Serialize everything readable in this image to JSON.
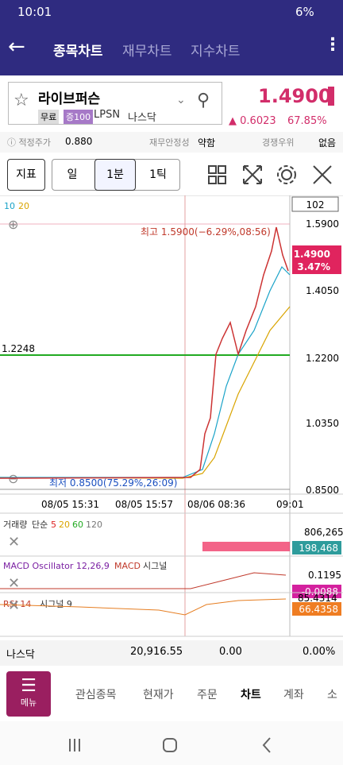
{
  "status_bar": {
    "time": "10:01",
    "battery": "6%"
  },
  "tabs": [
    "종목차트",
    "재무차트",
    "지수차트"
  ],
  "stock": {
    "name": "라이브퍼슨",
    "badges": [
      "무료",
      "증100"
    ],
    "ticker": "LPSN",
    "market": "나스닥",
    "price": "1.4900",
    "change": "0.6023",
    "change_pct": "67.85%"
  },
  "info": [
    {
      "label": "적정주가",
      "value": "0.880"
    },
    {
      "label": "재무안정성",
      "value": "약함"
    },
    {
      "label": "경쟁우위",
      "value": "없음"
    }
  ],
  "toolbar": [
    "지표",
    "일",
    "1분",
    "1틱"
  ],
  "chart": {
    "ma": [
      "10",
      "20"
    ],
    "count": "102",
    "price_ticks": [
      "1.5900",
      "1.4050",
      "1.2200",
      "1.0350",
      "0.8500"
    ],
    "current": {
      "price": "1.4900",
      "pct": "3.47%"
    },
    "high": "최고 1.5900(−6.29%,08:56)",
    "low": "최저 0.8500(75.29%,26:09)",
    "line_label": "1.2248",
    "time_ticks": [
      "08/05 15:31",
      "08/05 15:57",
      "08/06 08:36",
      "09:01"
    ]
  },
  "volume": {
    "title": "거래량",
    "kind": "단순",
    "ma": [
      "5",
      "20",
      "60",
      "120"
    ],
    "max": "806,265",
    "current": "198,468"
  },
  "macd": {
    "title": "MACD Oscillator 12,26,9",
    "macd": "MACD",
    "signal": "시그널",
    "max": "0.1195",
    "current": "-0.0088"
  },
  "rsi": {
    "title": "RSI 14",
    "signal": "시그널 9",
    "top": "85.4314",
    "current": "66.4358"
  },
  "index_row": {
    "name": "나스닥",
    "value": "20,916.55",
    "change": "0.00",
    "pct": "0.00%"
  },
  "nav": {
    "menu": "메뉴",
    "items": [
      "관심종목",
      "현재가",
      "주문",
      "차트",
      "계좌",
      "소"
    ]
  }
}
